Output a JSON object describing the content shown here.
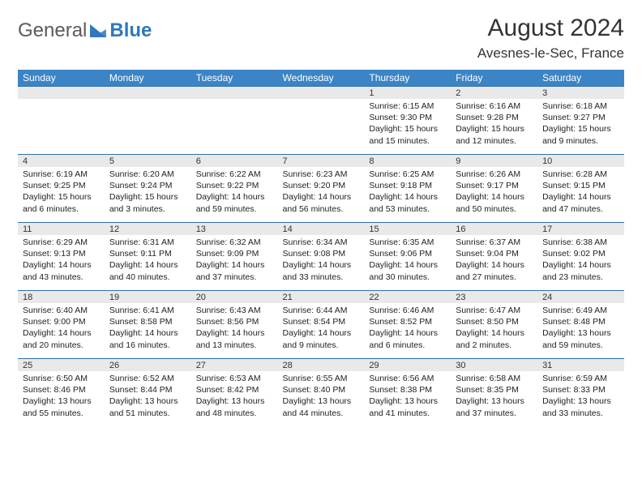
{
  "brand": {
    "word1": "General",
    "word2": "Blue"
  },
  "title": "August 2024",
  "location": "Avesnes-le-Sec, France",
  "colors": {
    "header_bg": "#3b85c6",
    "header_text": "#ffffff",
    "daynum_bg": "#e9e9e9",
    "rule": "#2f6fa8",
    "logo_blue": "#2f79bc"
  },
  "dow": [
    "Sunday",
    "Monday",
    "Tuesday",
    "Wednesday",
    "Thursday",
    "Friday",
    "Saturday"
  ],
  "weeks": [
    [
      {
        "n": "",
        "sr": "",
        "ss": "",
        "dl": ""
      },
      {
        "n": "",
        "sr": "",
        "ss": "",
        "dl": ""
      },
      {
        "n": "",
        "sr": "",
        "ss": "",
        "dl": ""
      },
      {
        "n": "",
        "sr": "",
        "ss": "",
        "dl": ""
      },
      {
        "n": "1",
        "sr": "Sunrise: 6:15 AM",
        "ss": "Sunset: 9:30 PM",
        "dl": "Daylight: 15 hours and 15 minutes."
      },
      {
        "n": "2",
        "sr": "Sunrise: 6:16 AM",
        "ss": "Sunset: 9:28 PM",
        "dl": "Daylight: 15 hours and 12 minutes."
      },
      {
        "n": "3",
        "sr": "Sunrise: 6:18 AM",
        "ss": "Sunset: 9:27 PM",
        "dl": "Daylight: 15 hours and 9 minutes."
      }
    ],
    [
      {
        "n": "4",
        "sr": "Sunrise: 6:19 AM",
        "ss": "Sunset: 9:25 PM",
        "dl": "Daylight: 15 hours and 6 minutes."
      },
      {
        "n": "5",
        "sr": "Sunrise: 6:20 AM",
        "ss": "Sunset: 9:24 PM",
        "dl": "Daylight: 15 hours and 3 minutes."
      },
      {
        "n": "6",
        "sr": "Sunrise: 6:22 AM",
        "ss": "Sunset: 9:22 PM",
        "dl": "Daylight: 14 hours and 59 minutes."
      },
      {
        "n": "7",
        "sr": "Sunrise: 6:23 AM",
        "ss": "Sunset: 9:20 PM",
        "dl": "Daylight: 14 hours and 56 minutes."
      },
      {
        "n": "8",
        "sr": "Sunrise: 6:25 AM",
        "ss": "Sunset: 9:18 PM",
        "dl": "Daylight: 14 hours and 53 minutes."
      },
      {
        "n": "9",
        "sr": "Sunrise: 6:26 AM",
        "ss": "Sunset: 9:17 PM",
        "dl": "Daylight: 14 hours and 50 minutes."
      },
      {
        "n": "10",
        "sr": "Sunrise: 6:28 AM",
        "ss": "Sunset: 9:15 PM",
        "dl": "Daylight: 14 hours and 47 minutes."
      }
    ],
    [
      {
        "n": "11",
        "sr": "Sunrise: 6:29 AM",
        "ss": "Sunset: 9:13 PM",
        "dl": "Daylight: 14 hours and 43 minutes."
      },
      {
        "n": "12",
        "sr": "Sunrise: 6:31 AM",
        "ss": "Sunset: 9:11 PM",
        "dl": "Daylight: 14 hours and 40 minutes."
      },
      {
        "n": "13",
        "sr": "Sunrise: 6:32 AM",
        "ss": "Sunset: 9:09 PM",
        "dl": "Daylight: 14 hours and 37 minutes."
      },
      {
        "n": "14",
        "sr": "Sunrise: 6:34 AM",
        "ss": "Sunset: 9:08 PM",
        "dl": "Daylight: 14 hours and 33 minutes."
      },
      {
        "n": "15",
        "sr": "Sunrise: 6:35 AM",
        "ss": "Sunset: 9:06 PM",
        "dl": "Daylight: 14 hours and 30 minutes."
      },
      {
        "n": "16",
        "sr": "Sunrise: 6:37 AM",
        "ss": "Sunset: 9:04 PM",
        "dl": "Daylight: 14 hours and 27 minutes."
      },
      {
        "n": "17",
        "sr": "Sunrise: 6:38 AM",
        "ss": "Sunset: 9:02 PM",
        "dl": "Daylight: 14 hours and 23 minutes."
      }
    ],
    [
      {
        "n": "18",
        "sr": "Sunrise: 6:40 AM",
        "ss": "Sunset: 9:00 PM",
        "dl": "Daylight: 14 hours and 20 minutes."
      },
      {
        "n": "19",
        "sr": "Sunrise: 6:41 AM",
        "ss": "Sunset: 8:58 PM",
        "dl": "Daylight: 14 hours and 16 minutes."
      },
      {
        "n": "20",
        "sr": "Sunrise: 6:43 AM",
        "ss": "Sunset: 8:56 PM",
        "dl": "Daylight: 14 hours and 13 minutes."
      },
      {
        "n": "21",
        "sr": "Sunrise: 6:44 AM",
        "ss": "Sunset: 8:54 PM",
        "dl": "Daylight: 14 hours and 9 minutes."
      },
      {
        "n": "22",
        "sr": "Sunrise: 6:46 AM",
        "ss": "Sunset: 8:52 PM",
        "dl": "Daylight: 14 hours and 6 minutes."
      },
      {
        "n": "23",
        "sr": "Sunrise: 6:47 AM",
        "ss": "Sunset: 8:50 PM",
        "dl": "Daylight: 14 hours and 2 minutes."
      },
      {
        "n": "24",
        "sr": "Sunrise: 6:49 AM",
        "ss": "Sunset: 8:48 PM",
        "dl": "Daylight: 13 hours and 59 minutes."
      }
    ],
    [
      {
        "n": "25",
        "sr": "Sunrise: 6:50 AM",
        "ss": "Sunset: 8:46 PM",
        "dl": "Daylight: 13 hours and 55 minutes."
      },
      {
        "n": "26",
        "sr": "Sunrise: 6:52 AM",
        "ss": "Sunset: 8:44 PM",
        "dl": "Daylight: 13 hours and 51 minutes."
      },
      {
        "n": "27",
        "sr": "Sunrise: 6:53 AM",
        "ss": "Sunset: 8:42 PM",
        "dl": "Daylight: 13 hours and 48 minutes."
      },
      {
        "n": "28",
        "sr": "Sunrise: 6:55 AM",
        "ss": "Sunset: 8:40 PM",
        "dl": "Daylight: 13 hours and 44 minutes."
      },
      {
        "n": "29",
        "sr": "Sunrise: 6:56 AM",
        "ss": "Sunset: 8:38 PM",
        "dl": "Daylight: 13 hours and 41 minutes."
      },
      {
        "n": "30",
        "sr": "Sunrise: 6:58 AM",
        "ss": "Sunset: 8:35 PM",
        "dl": "Daylight: 13 hours and 37 minutes."
      },
      {
        "n": "31",
        "sr": "Sunrise: 6:59 AM",
        "ss": "Sunset: 8:33 PM",
        "dl": "Daylight: 13 hours and 33 minutes."
      }
    ]
  ]
}
